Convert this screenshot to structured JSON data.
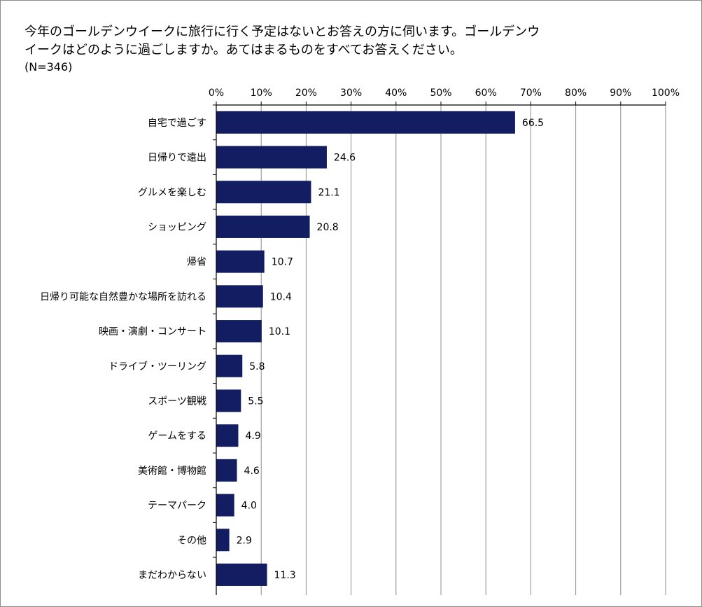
{
  "chart_data": {
    "type": "bar",
    "orientation": "horizontal",
    "title_lines": [
      "今年のゴールデンウイークに旅行に行く予定はないとお答えの方に伺います。ゴールデンウ",
      "イークはどのように過ごしますか。あてはまるものをすべてお答えください。"
    ],
    "subtitle": "(N=346)",
    "categories": [
      "自宅で過ごす",
      "日帰りで遠出",
      "グルメを楽しむ",
      "ショッピング",
      "帰省",
      "日帰り可能な自然豊かな場所を訪れる",
      "映画・演劇・コンサート",
      "ドライブ・ツーリング",
      "スポーツ観戦",
      "ゲームをする",
      "美術館・博物館",
      "テーマパーク",
      "その他",
      "まだわからない"
    ],
    "values": [
      66.5,
      24.6,
      21.1,
      20.8,
      10.7,
      10.4,
      10.1,
      5.8,
      5.5,
      4.9,
      4.6,
      4.0,
      2.9,
      11.3
    ],
    "value_labels": [
      "66.5",
      "24.6",
      "21.1",
      "20.8",
      "10.7",
      "10.4",
      "10.1",
      "5.8",
      "5.5",
      "4.9",
      "4.6",
      "4.0",
      "2.9",
      "11.3"
    ],
    "x_ticks": [
      0,
      10,
      20,
      30,
      40,
      50,
      60,
      70,
      80,
      90,
      100
    ],
    "x_tick_labels": [
      "0%",
      "10%",
      "20%",
      "30%",
      "40%",
      "50%",
      "60%",
      "70%",
      "80%",
      "90%",
      "100%"
    ],
    "xlim": [
      0,
      100
    ],
    "xlabel": "",
    "ylabel": "",
    "grid": true,
    "axis_position": "top",
    "bar_color": "#131d61"
  }
}
